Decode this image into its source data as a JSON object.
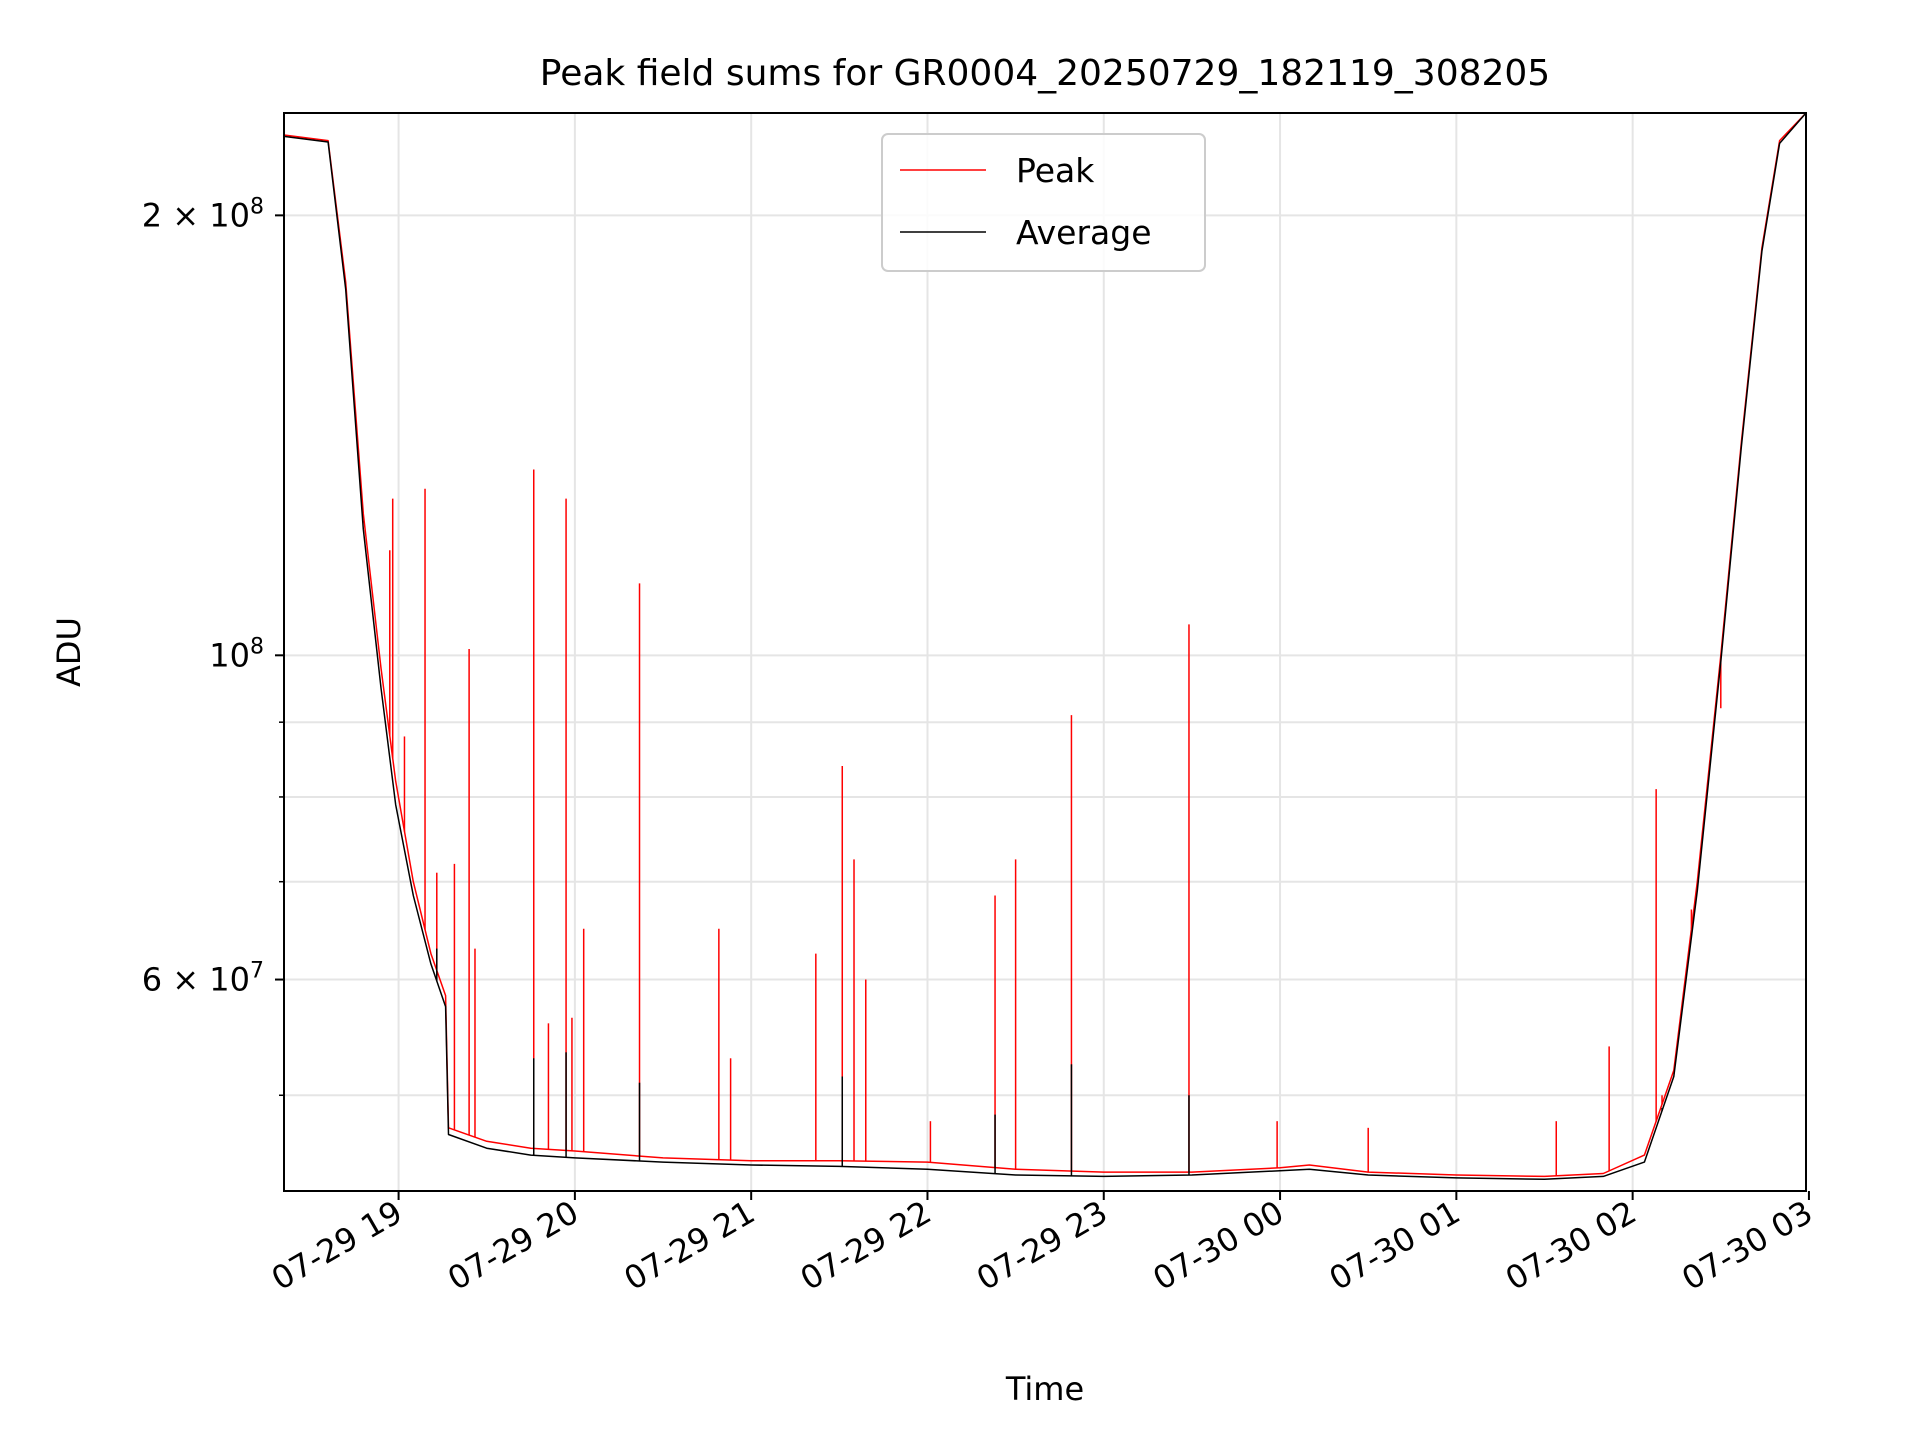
{
  "chart_data": {
    "type": "line",
    "title": "Peak field sums for GR0004_20250729_182119_308205",
    "xlabel": "Time",
    "ylabel": "ADU",
    "y_scale": "log",
    "ylim": [
      43000000,
      235000000
    ],
    "xlim": [
      "2025-07-29T18:21",
      "2025-07-30T02:59"
    ],
    "x_ticks": [
      {
        "label": "07-29 19",
        "t": "2025-07-29T19:00"
      },
      {
        "label": "07-29 20",
        "t": "2025-07-29T20:00"
      },
      {
        "label": "07-29 21",
        "t": "2025-07-29T21:00"
      },
      {
        "label": "07-29 22",
        "t": "2025-07-29T22:00"
      },
      {
        "label": "07-29 23",
        "t": "2025-07-29T23:00"
      },
      {
        "label": "07-30 00",
        "t": "2025-07-30T00:00"
      },
      {
        "label": "07-30 01",
        "t": "2025-07-30T01:00"
      },
      {
        "label": "07-30 02",
        "t": "2025-07-30T02:00"
      },
      {
        "label": "07-30 03",
        "t": "2025-07-30T03:00"
      }
    ],
    "y_ticks": [
      {
        "mantissa": "2",
        "exp": "8",
        "value": 200000000
      },
      {
        "mantissa": "",
        "exp": "8",
        "value": 100000000
      },
      {
        "mantissa": "6",
        "exp": "7",
        "value": 60000000
      }
    ],
    "y_minor_ticks": [
      50000000,
      70000000,
      80000000,
      90000000
    ],
    "grid": true,
    "legend_position": "top-center",
    "series": [
      {
        "name": "Peak",
        "color": "#ff0000",
        "baseline": [
          [
            "2025-07-29T18:21",
            227000000
          ],
          [
            "2025-07-29T18:36",
            225000000
          ],
          [
            "2025-07-29T18:42",
            180000000
          ],
          [
            "2025-07-29T18:48",
            125000000
          ],
          [
            "2025-07-29T18:54",
            98000000
          ],
          [
            "2025-07-29T18:59",
            82000000
          ],
          [
            "2025-07-29T19:05",
            70000000
          ],
          [
            "2025-07-29T19:11",
            62500000
          ],
          [
            "2025-07-29T19:16",
            58500000
          ],
          [
            "2025-07-29T19:17",
            47500000
          ],
          [
            "2025-07-29T19:30",
            46500000
          ],
          [
            "2025-07-29T19:45",
            46000000
          ],
          [
            "2025-07-29T20:00",
            45800000
          ],
          [
            "2025-07-29T20:30",
            45300000
          ],
          [
            "2025-07-29T21:00",
            45100000
          ],
          [
            "2025-07-29T21:30",
            45100000
          ],
          [
            "2025-07-29T22:00",
            45000000
          ],
          [
            "2025-07-29T22:30",
            44500000
          ],
          [
            "2025-07-29T23:00",
            44300000
          ],
          [
            "2025-07-29T23:30",
            44300000
          ],
          [
            "2025-07-30T00:00",
            44600000
          ],
          [
            "2025-07-30T00:10",
            44800000
          ],
          [
            "2025-07-30T00:30",
            44300000
          ],
          [
            "2025-07-30T01:00",
            44100000
          ],
          [
            "2025-07-30T01:30",
            44000000
          ],
          [
            "2025-07-30T01:50",
            44200000
          ],
          [
            "2025-07-30T02:04",
            45500000
          ],
          [
            "2025-07-30T02:14",
            52000000
          ],
          [
            "2025-07-30T02:22",
            70000000
          ],
          [
            "2025-07-30T02:30",
            100000000
          ],
          [
            "2025-07-30T02:37",
            140000000
          ],
          [
            "2025-07-30T02:44",
            190000000
          ],
          [
            "2025-07-30T02:50",
            225000000
          ],
          [
            "2025-07-30T02:59",
            235000000
          ]
        ],
        "spikes": [
          [
            "2025-07-29T18:57",
            118000000
          ],
          [
            "2025-07-29T18:58",
            128000000
          ],
          [
            "2025-07-29T19:02",
            88000000
          ],
          [
            "2025-07-29T19:09",
            130000000
          ],
          [
            "2025-07-29T19:13",
            71000000
          ],
          [
            "2025-07-29T19:19",
            72000000
          ],
          [
            "2025-07-29T19:24",
            101000000
          ],
          [
            "2025-07-29T19:26",
            63000000
          ],
          [
            "2025-07-29T19:46",
            134000000
          ],
          [
            "2025-07-29T19:51",
            56000000
          ],
          [
            "2025-07-29T19:57",
            128000000
          ],
          [
            "2025-07-29T19:59",
            56500000
          ],
          [
            "2025-07-29T20:03",
            65000000
          ],
          [
            "2025-07-29T20:22",
            112000000
          ],
          [
            "2025-07-29T20:49",
            65000000
          ],
          [
            "2025-07-29T20:53",
            53000000
          ],
          [
            "2025-07-29T21:22",
            62500000
          ],
          [
            "2025-07-29T21:31",
            84000000
          ],
          [
            "2025-07-29T21:35",
            72500000
          ],
          [
            "2025-07-29T21:39",
            60000000
          ],
          [
            "2025-07-29T22:01",
            48000000
          ],
          [
            "2025-07-29T22:23",
            68500000
          ],
          [
            "2025-07-29T22:30",
            72500000
          ],
          [
            "2025-07-29T22:49",
            91000000
          ],
          [
            "2025-07-29T23:29",
            105000000
          ],
          [
            "2025-07-29T23:59",
            48000000
          ],
          [
            "2025-07-30T00:30",
            47500000
          ],
          [
            "2025-07-30T01:34",
            48000000
          ],
          [
            "2025-07-30T01:52",
            54000000
          ],
          [
            "2025-07-30T02:08",
            81000000
          ],
          [
            "2025-07-30T02:10",
            50000000
          ],
          [
            "2025-07-30T02:20",
            67000000
          ],
          [
            "2025-07-30T02:30",
            92000000
          ]
        ]
      },
      {
        "name": "Average",
        "color": "#000000",
        "baseline": [
          [
            "2025-07-29T18:21",
            226500000
          ],
          [
            "2025-07-29T18:36",
            224500000
          ],
          [
            "2025-07-29T18:42",
            178000000
          ],
          [
            "2025-07-29T18:48",
            122000000
          ],
          [
            "2025-07-29T18:54",
            95000000
          ],
          [
            "2025-07-29T18:59",
            79000000
          ],
          [
            "2025-07-29T19:05",
            68500000
          ],
          [
            "2025-07-29T19:11",
            61500000
          ],
          [
            "2025-07-29T19:16",
            57500000
          ],
          [
            "2025-07-29T19:17",
            47000000
          ],
          [
            "2025-07-29T19:30",
            46000000
          ],
          [
            "2025-07-29T19:45",
            45500000
          ],
          [
            "2025-07-29T20:00",
            45300000
          ],
          [
            "2025-07-29T20:30",
            45000000
          ],
          [
            "2025-07-29T21:00",
            44800000
          ],
          [
            "2025-07-29T21:30",
            44700000
          ],
          [
            "2025-07-29T22:00",
            44500000
          ],
          [
            "2025-07-29T22:30",
            44100000
          ],
          [
            "2025-07-29T23:00",
            44000000
          ],
          [
            "2025-07-29T23:30",
            44100000
          ],
          [
            "2025-07-30T00:00",
            44400000
          ],
          [
            "2025-07-30T00:10",
            44500000
          ],
          [
            "2025-07-30T00:30",
            44100000
          ],
          [
            "2025-07-30T01:00",
            43900000
          ],
          [
            "2025-07-30T01:30",
            43800000
          ],
          [
            "2025-07-30T01:50",
            44000000
          ],
          [
            "2025-07-30T02:04",
            45000000
          ],
          [
            "2025-07-30T02:14",
            51500000
          ],
          [
            "2025-07-30T02:22",
            69000000
          ],
          [
            "2025-07-30T02:30",
            99000000
          ],
          [
            "2025-07-30T02:37",
            139000000
          ],
          [
            "2025-07-30T02:44",
            189000000
          ],
          [
            "2025-07-30T02:50",
            224000000
          ],
          [
            "2025-07-30T02:59",
            235000000
          ]
        ],
        "spikes": [
          [
            "2025-07-29T19:13",
            63000000
          ],
          [
            "2025-07-29T19:46",
            53000000
          ],
          [
            "2025-07-29T19:57",
            53500000
          ],
          [
            "2025-07-29T20:22",
            51000000
          ],
          [
            "2025-07-29T21:31",
            51500000
          ],
          [
            "2025-07-29T22:23",
            48500000
          ],
          [
            "2025-07-29T22:49",
            52500000
          ],
          [
            "2025-07-29T23:29",
            50000000
          ],
          [
            "2025-07-30T02:10",
            49000000
          ]
        ]
      }
    ]
  }
}
